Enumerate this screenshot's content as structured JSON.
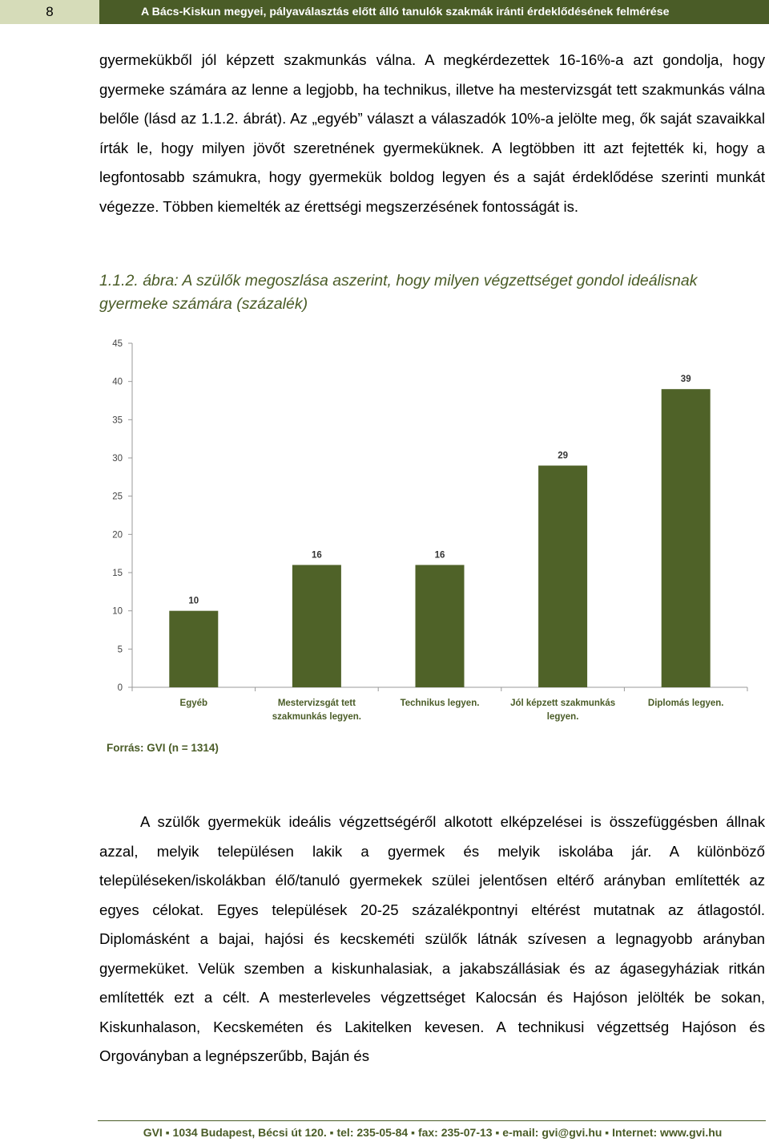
{
  "header": {
    "page_number": "8",
    "title": "A Bács-Kiskun megyei, pályaválasztás előtt álló tanulók szakmák iránti érdeklődésének felmérése"
  },
  "paragraph1": "gyermekükből jól képzett szakmunkás válna. A megkérdezettek 16-16%-a azt gondolja, hogy gyermeke számára az lenne a legjobb, ha technikus, illetve ha mestervizsgát tett szakmunkás válna belőle (lásd az 1.1.2. ábrát). Az „egyéb” választ a válaszadók 10%-a jelölte meg, ők saját szavaikkal írták le, hogy milyen jövőt szeretnének gyermeküknek. A legtöbben itt azt fejtették ki, hogy a legfontosabb számukra, hogy gyermekük boldog legyen és a saját érdeklődése szerinti munkát végezze. Többen kiemelték az érettségi megszerzésének fontosságát is.",
  "figure_caption": "1.1.2. ábra: A szülők megoszlása aszerint, hogy milyen végzettséget gondol ideálisnak gyermeke számára (százalék)",
  "chart_data": {
    "type": "bar",
    "title": "",
    "xlabel": "",
    "ylabel": "",
    "categories": [
      [
        "Egyéb"
      ],
      [
        "Mestervizsgát tett",
        "szakmunkás legyen."
      ],
      [
        "Technikus legyen."
      ],
      [
        "Jól képzett szakmunkás",
        "legyen."
      ],
      [
        "Diplomás legyen."
      ]
    ],
    "values": [
      10,
      16,
      16,
      29,
      39
    ],
    "ylim": [
      0,
      45
    ],
    "yticks": [
      0,
      5,
      10,
      15,
      20,
      25,
      30,
      35,
      40,
      45
    ],
    "grid": false,
    "bar_color": "#4f6228"
  },
  "source": "Forrás: GVI (n = 1314)",
  "paragraph2": "A szülők gyermekük ideális végzettségéről alkotott elképzelései is összefüggésben állnak azzal, melyik településen lakik a gyermek és melyik iskolába jár. A különböző településeken/iskolákban élő/tanuló gyermekek szülei jelentősen eltérő arányban említették az egyes célokat. Egyes települések 20-25 százalékpontnyi eltérést mutatnak az átlagostól. Diplomásként a bajai, hajósi és kecskeméti szülők látnák szívesen a legnagyobb arányban gyermeküket. Velük szemben a kiskunhalasiak, a jakabszállásiak és az ágasegyháziak ritkán említették ezt a célt. A mesterleveles végzettséget Kalocsán és Hajóson jelölték be sokan, Kiskunhalason, Kecskeméten és Lakitelken kevesen. A technikusi végzettség Hajóson és Orgoványban a legnépszerűbb, Baján és",
  "footer": "GVI ▪ 1034 Budapest, Bécsi út 120. ▪ tel: 235-05-84 ▪ fax: 235-07-13 ▪ e-mail: gvi@gvi.hu ▪ Internet: www.gvi.hu"
}
